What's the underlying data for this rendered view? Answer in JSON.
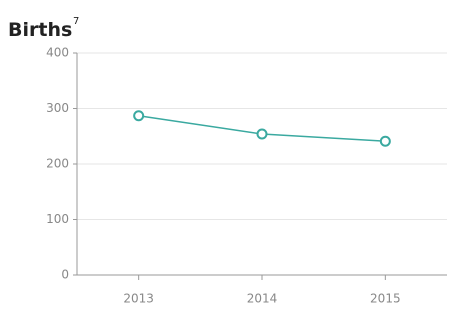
{
  "chart_data": {
    "type": "line",
    "title": "Births",
    "title_superscript": "7",
    "categories": [
      "2013",
      "2014",
      "2015"
    ],
    "values": [
      287,
      254,
      241
    ],
    "color": "#3aa9a0",
    "ylim": [
      0,
      400
    ],
    "yticks": [
      0,
      100,
      200,
      300,
      400
    ],
    "grid": true
  }
}
